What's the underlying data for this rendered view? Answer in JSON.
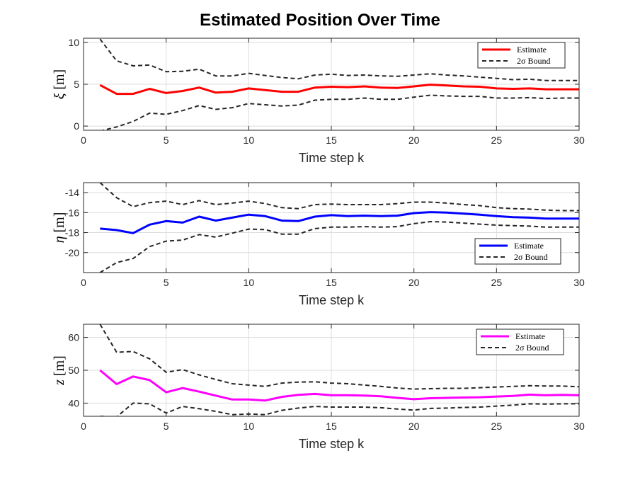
{
  "chart_data": {
    "type": "line",
    "title": "Estimated Position Over Time",
    "subplots": [
      {
        "ylabel_symbol": "ξ",
        "ylabel_unit": "[m]",
        "xlabel": "Time step k",
        "xlim": [
          0,
          30
        ],
        "ylim": [
          -0.5,
          10.5
        ],
        "xticks": [
          0,
          5,
          10,
          15,
          20,
          25,
          30
        ],
        "yticks": [
          0,
          5,
          10
        ],
        "grid": true,
        "legend": {
          "position": "top-right",
          "entries": [
            "Estimate",
            "2σ Bound"
          ]
        },
        "x": [
          1,
          2,
          3,
          4,
          5,
          6,
          7,
          8,
          9,
          10,
          11,
          12,
          13,
          14,
          15,
          16,
          17,
          18,
          19,
          20,
          21,
          22,
          23,
          24,
          25,
          26,
          27,
          28,
          29,
          30
        ],
        "series": [
          {
            "name": "Estimate",
            "color": "#ff0000",
            "style": "solid",
            "values": [
              4.9,
              3.85,
              3.85,
              4.45,
              3.95,
              4.2,
              4.6,
              4.0,
              4.1,
              4.5,
              4.3,
              4.1,
              4.1,
              4.6,
              4.7,
              4.65,
              4.75,
              4.6,
              4.55,
              4.75,
              4.95,
              4.85,
              4.75,
              4.7,
              4.5,
              4.45,
              4.5,
              4.4,
              4.4,
              4.4
            ]
          },
          {
            "name": "2σ Bound",
            "color": "#262626",
            "style": "dashed",
            "role": "upper",
            "values": [
              10.4,
              7.8,
              7.2,
              7.3,
              6.5,
              6.55,
              6.8,
              6.0,
              6.0,
              6.3,
              6.05,
              5.8,
              5.65,
              6.1,
              6.2,
              6.05,
              6.1,
              6.0,
              5.95,
              6.1,
              6.25,
              6.1,
              6.0,
              5.85,
              5.7,
              5.55,
              5.6,
              5.45,
              5.45,
              5.45
            ]
          },
          {
            "name": "2σ Bound",
            "color": "#262626",
            "style": "dashed",
            "role": "lower",
            "values": [
              -0.6,
              -0.1,
              0.55,
              1.55,
              1.4,
              1.85,
              2.45,
              2.0,
              2.2,
              2.7,
              2.55,
              2.4,
              2.5,
              3.1,
              3.2,
              3.2,
              3.35,
              3.2,
              3.2,
              3.45,
              3.7,
              3.6,
              3.55,
              3.55,
              3.35,
              3.35,
              3.4,
              3.3,
              3.35,
              3.35
            ]
          }
        ]
      },
      {
        "ylabel_symbol": "η",
        "ylabel_unit": "[m]",
        "xlabel": "Time step k",
        "xlim": [
          0,
          30
        ],
        "ylim": [
          -22.0,
          -13.0
        ],
        "xticks": [
          0,
          5,
          10,
          15,
          20,
          25,
          30
        ],
        "yticks": [
          -20,
          -18,
          -16,
          -14
        ],
        "grid": true,
        "legend": {
          "position": "bottom-right",
          "entries": [
            "Estimate",
            "2σ Bound"
          ]
        },
        "x": [
          1,
          2,
          3,
          4,
          5,
          6,
          7,
          8,
          9,
          10,
          11,
          12,
          13,
          14,
          15,
          16,
          17,
          18,
          19,
          20,
          21,
          22,
          23,
          24,
          25,
          26,
          27,
          28,
          29,
          30
        ],
        "series": [
          {
            "name": "Estimate",
            "color": "#0000ff",
            "style": "solid",
            "values": [
              -17.6,
              -17.75,
              -18.05,
              -17.2,
              -16.85,
              -17.0,
              -16.4,
              -16.8,
              -16.5,
              -16.2,
              -16.35,
              -16.8,
              -16.85,
              -16.4,
              -16.25,
              -16.35,
              -16.3,
              -16.35,
              -16.3,
              -16.05,
              -15.95,
              -16.0,
              -16.1,
              -16.2,
              -16.35,
              -16.45,
              -16.5,
              -16.6,
              -16.6,
              -16.6
            ]
          },
          {
            "name": "2σ Bound",
            "color": "#262626",
            "style": "dashed",
            "role": "upper",
            "values": [
              -13.0,
              -14.5,
              -15.4,
              -15.0,
              -14.85,
              -15.2,
              -14.8,
              -15.2,
              -15.05,
              -14.85,
              -15.1,
              -15.5,
              -15.6,
              -15.2,
              -15.15,
              -15.2,
              -15.2,
              -15.2,
              -15.1,
              -14.95,
              -14.95,
              -15.05,
              -15.2,
              -15.3,
              -15.5,
              -15.6,
              -15.65,
              -15.75,
              -15.8,
              -15.8
            ]
          },
          {
            "name": "2σ Bound",
            "color": "#262626",
            "style": "dashed",
            "role": "lower",
            "values": [
              -22.0,
              -21.0,
              -20.6,
              -19.4,
              -18.85,
              -18.75,
              -18.2,
              -18.45,
              -18.05,
              -17.65,
              -17.7,
              -18.15,
              -18.15,
              -17.6,
              -17.45,
              -17.45,
              -17.4,
              -17.45,
              -17.4,
              -17.1,
              -16.9,
              -16.95,
              -17.05,
              -17.15,
              -17.25,
              -17.3,
              -17.35,
              -17.45,
              -17.45,
              -17.45
            ]
          }
        ]
      },
      {
        "ylabel_symbol": "z",
        "ylabel_unit": "[m]",
        "xlabel": "Time step k",
        "xlim": [
          0,
          30
        ],
        "ylim": [
          36,
          64
        ],
        "xticks": [
          0,
          5,
          10,
          15,
          20,
          25,
          30
        ],
        "yticks": [
          40,
          50,
          60
        ],
        "grid": true,
        "legend": {
          "position": "top-right",
          "entries": [
            "Estimate",
            "2σ Bound"
          ]
        },
        "x": [
          1,
          2,
          3,
          4,
          5,
          6,
          7,
          8,
          9,
          10,
          11,
          12,
          13,
          14,
          15,
          16,
          17,
          18,
          19,
          20,
          21,
          22,
          23,
          24,
          25,
          26,
          27,
          28,
          29,
          30
        ],
        "series": [
          {
            "name": "Estimate",
            "color": "#ff00ff",
            "style": "solid",
            "values": [
              50.0,
              45.8,
              48.1,
              47.0,
              43.3,
              44.6,
              43.5,
              42.3,
              41.1,
              41.1,
              40.8,
              41.9,
              42.5,
              42.8,
              42.4,
              42.4,
              42.3,
              42.1,
              41.6,
              41.2,
              41.5,
              41.6,
              41.7,
              41.8,
              42.0,
              42.2,
              42.6,
              42.4,
              42.5,
              42.4
            ]
          },
          {
            "name": "2σ Bound",
            "color": "#262626",
            "style": "dashed",
            "role": "upper",
            "values": [
              64.0,
              55.5,
              55.7,
              53.5,
              49.4,
              50.2,
              48.6,
              47.2,
              45.9,
              45.5,
              45.1,
              46.1,
              46.4,
              46.5,
              46.1,
              45.9,
              45.5,
              45.1,
              44.6,
              44.3,
              44.4,
              44.5,
              44.5,
              44.7,
              44.9,
              45.1,
              45.3,
              45.2,
              45.2,
              45.0
            ]
          },
          {
            "name": "2σ Bound",
            "color": "#262626",
            "style": "dashed",
            "role": "lower",
            "values": [
              36.0,
              35.8,
              40.0,
              39.8,
              37.0,
              39.0,
              38.3,
              37.5,
              36.5,
              36.7,
              36.5,
              37.8,
              38.5,
              39.0,
              38.8,
              38.8,
              38.8,
              38.6,
              38.2,
              37.9,
              38.4,
              38.5,
              38.7,
              38.8,
              39.1,
              39.4,
              39.8,
              39.7,
              39.8,
              39.8
            ]
          }
        ]
      }
    ]
  }
}
